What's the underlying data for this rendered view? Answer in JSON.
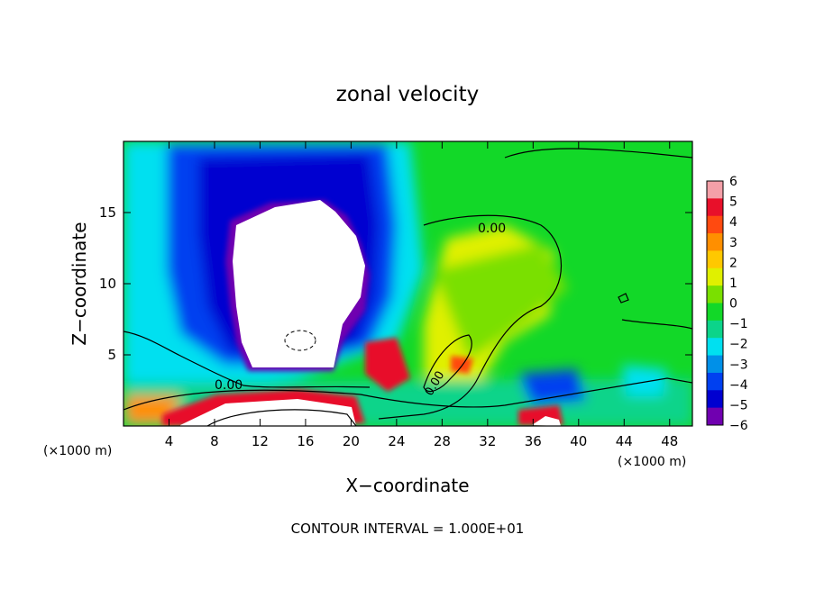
{
  "chart_data": {
    "type": "heatmap",
    "title": "zonal velocity",
    "xlabel": "X−coordinate",
    "ylabel": "Z−coordinate",
    "x_unit_label": "(×1000 m)",
    "y_unit_label": "(×1000 m)",
    "xlim": [
      0,
      50
    ],
    "ylim": [
      0,
      20
    ],
    "x_ticks": [
      "4",
      "8",
      "12",
      "16",
      "20",
      "24",
      "28",
      "32",
      "36",
      "40",
      "44",
      "48"
    ],
    "y_ticks": [
      "5",
      "10",
      "15"
    ],
    "colorbar": {
      "range": [
        -6,
        6
      ],
      "ticks": [
        "6",
        "5",
        "4",
        "3",
        "2",
        "1",
        "0",
        "−1",
        "−2",
        "−3",
        "−4",
        "−5",
        "−6"
      ],
      "colors": [
        "#f4a0a8",
        "#e8102a",
        "#ff4a10",
        "#ff8f00",
        "#ffc800",
        "#e0f000",
        "#7ae000",
        "#12d828",
        "#0cd48a",
        "#00e0f0",
        "#0090e8",
        "#0040f0",
        "#0000d0",
        "#7000b0"
      ]
    },
    "contour_labels": [
      "0.00",
      "0.00",
      "0.00"
    ],
    "footer": "CONTOUR INTERVAL = 1.000E+01"
  }
}
